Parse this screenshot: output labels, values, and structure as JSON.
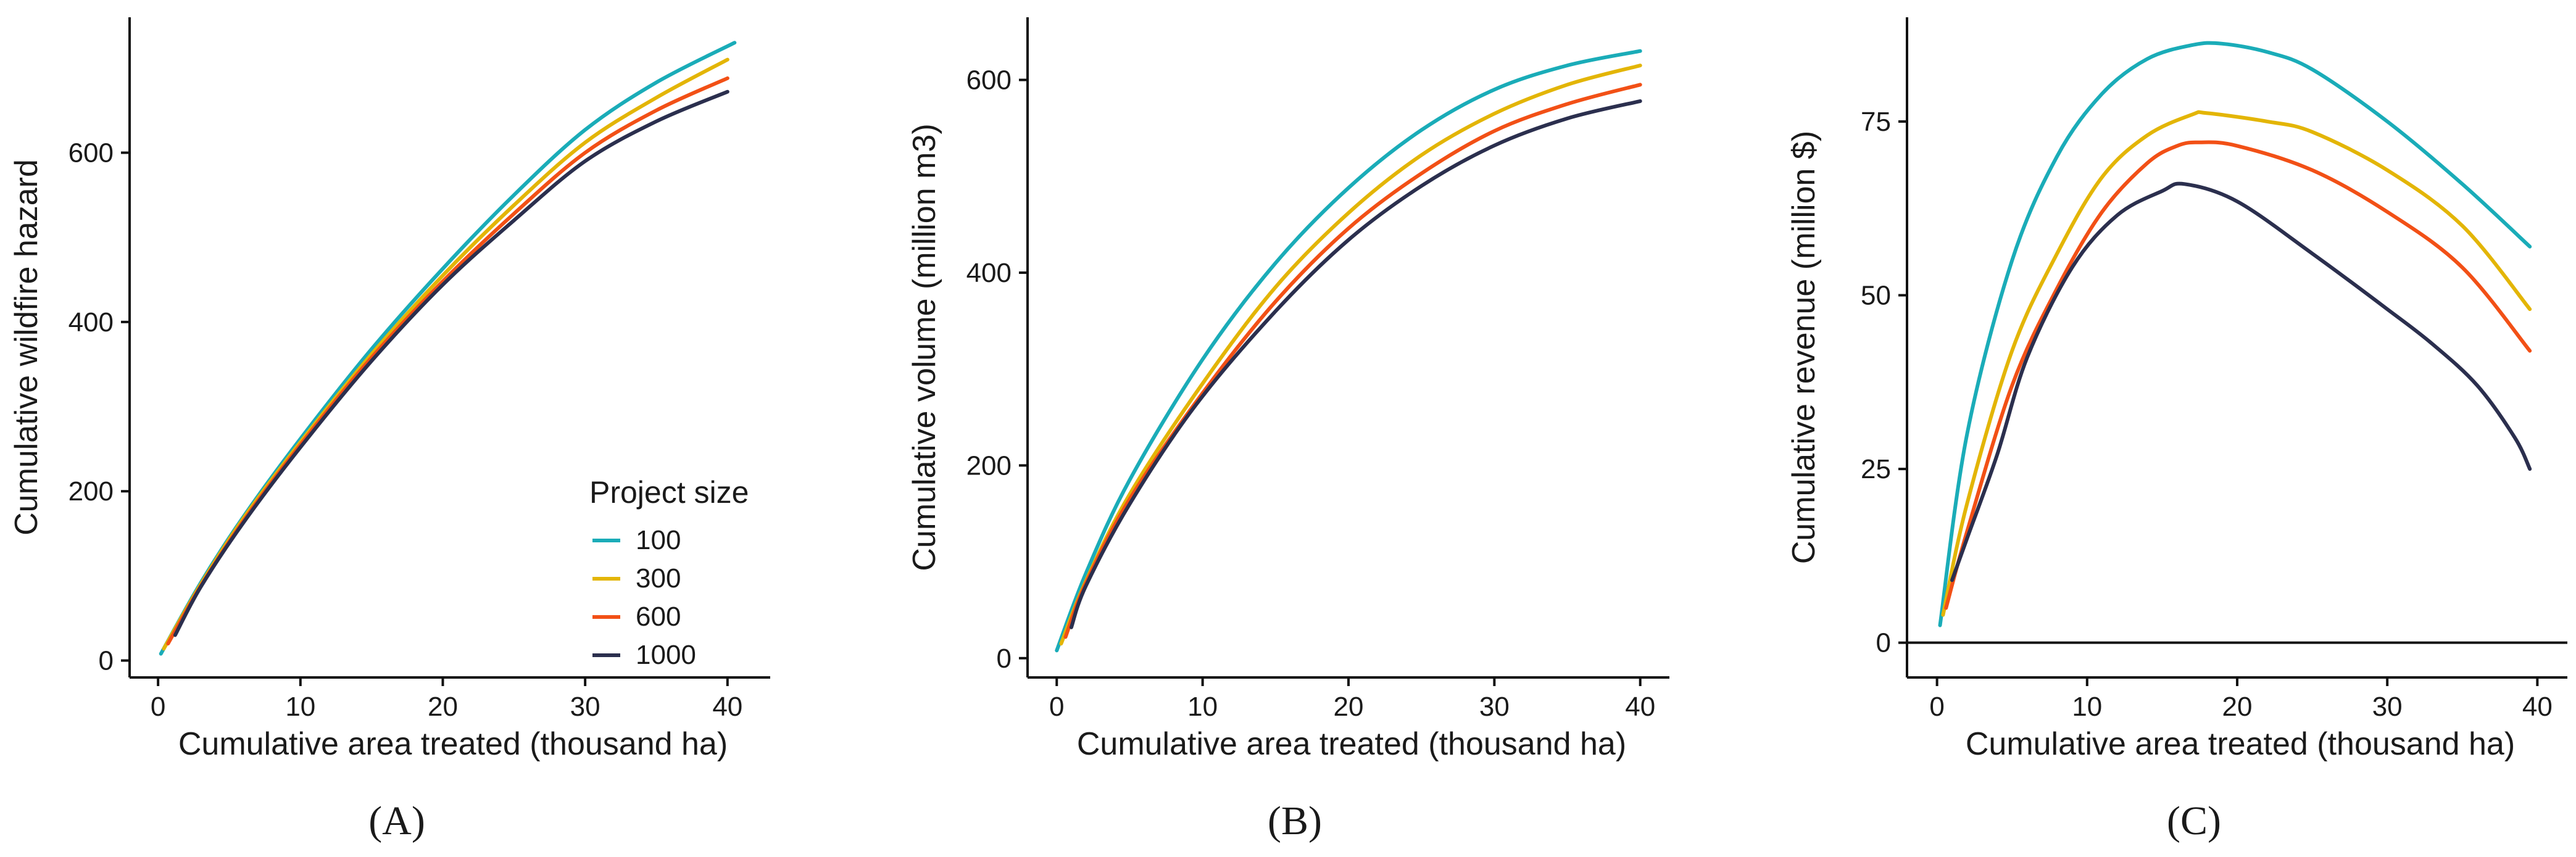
{
  "colors": {
    "100": "#1AACB8",
    "300": "#E3B505",
    "600": "#F25016",
    "1000": "#2B2F4E"
  },
  "legend": {
    "title": "Project size",
    "entries": [
      "100",
      "300",
      "600",
      "1000"
    ]
  },
  "chart_data": [
    {
      "type": "line",
      "panel_label": "(A)",
      "xlabel": "Cumulative area treated (thousand ha)",
      "ylabel": "Cumulative wildfire hazard",
      "xlim": [
        -2,
        43
      ],
      "ylim": [
        -20,
        760
      ],
      "xticks": [
        0,
        10,
        20,
        30,
        40
      ],
      "yticks": [
        0,
        200,
        400,
        600
      ],
      "legend_position": "bottom-right",
      "series": [
        {
          "name": "100",
          "x": [
            0.2,
            3,
            6,
            10,
            15,
            20,
            25,
            30,
            35,
            40.5
          ],
          "y": [
            8,
            92,
            170,
            262,
            368,
            463,
            550,
            627,
            683,
            730
          ]
        },
        {
          "name": "300",
          "x": [
            0.4,
            3,
            6,
            10,
            15,
            20,
            25,
            30,
            35,
            40
          ],
          "y": [
            14,
            90,
            168,
            258,
            362,
            455,
            538,
            612,
            665,
            710
          ]
        },
        {
          "name": "600",
          "x": [
            0.7,
            3,
            6,
            10,
            15,
            20,
            25,
            30,
            35,
            40
          ],
          "y": [
            20,
            88,
            165,
            255,
            358,
            448,
            528,
            600,
            650,
            688
          ]
        },
        {
          "name": "1000",
          "x": [
            1.2,
            3,
            6,
            10,
            15,
            20,
            25,
            30,
            35,
            40
          ],
          "y": [
            30,
            87,
            163,
            252,
            354,
            444,
            520,
            590,
            637,
            672
          ]
        }
      ]
    },
    {
      "type": "line",
      "panel_label": "(B)",
      "xlabel": "Cumulative area treated (thousand ha)",
      "ylabel": "Cumulative volume (million m3)",
      "xlim": [
        -2,
        42
      ],
      "ylim": [
        -20,
        665
      ],
      "xticks": [
        0,
        10,
        20,
        30,
        40
      ],
      "yticks": [
        0,
        200,
        400,
        600
      ],
      "legend_position": "none",
      "series": [
        {
          "name": "100",
          "x": [
            0,
            2,
            5,
            10,
            15,
            20,
            25,
            30,
            35,
            40
          ],
          "y": [
            8,
            88,
            185,
            310,
            410,
            488,
            548,
            590,
            615,
            630
          ]
        },
        {
          "name": "300",
          "x": [
            0.3,
            2,
            5,
            10,
            15,
            20,
            25,
            30,
            35,
            40
          ],
          "y": [
            15,
            80,
            170,
            285,
            385,
            462,
            522,
            565,
            595,
            615
          ]
        },
        {
          "name": "600",
          "x": [
            0.6,
            2,
            5,
            10,
            15,
            20,
            25,
            30,
            35,
            40
          ],
          "y": [
            22,
            78,
            165,
            275,
            370,
            446,
            503,
            547,
            575,
            595
          ]
        },
        {
          "name": "1000",
          "x": [
            1,
            2,
            5,
            9.5,
            15,
            20,
            25,
            30,
            35,
            40
          ],
          "y": [
            32,
            75,
            160,
            262,
            360,
            434,
            490,
            532,
            560,
            578
          ]
        }
      ]
    },
    {
      "type": "line",
      "panel_label": "(C)",
      "xlabel": "Cumulative area treated (thousand ha)",
      "ylabel": "Cumulative revenue (million $)",
      "xlim": [
        -2,
        42
      ],
      "ylim": [
        -5,
        90
      ],
      "xticks": [
        0,
        10,
        20,
        30,
        40
      ],
      "yticks": [
        0,
        25,
        50,
        75
      ],
      "zero_line": 0,
      "legend_position": "none",
      "series": [
        {
          "name": "100",
          "x": [
            0.2,
            2,
            5,
            8,
            11,
            14,
            17,
            19,
            22,
            25,
            30,
            35,
            39.5
          ],
          "y": [
            2.5,
            30,
            55,
            70,
            79,
            84,
            86,
            86.2,
            85,
            82.5,
            75,
            66,
            57
          ]
        },
        {
          "name": "300",
          "x": [
            0.4,
            2,
            5,
            8,
            11,
            14,
            17,
            18,
            22,
            25,
            30,
            35,
            39.5
          ],
          "y": [
            4,
            20,
            42,
            56,
            67,
            73,
            76,
            76.2,
            75,
            73.5,
            68,
            60,
            48
          ]
        },
        {
          "name": "600",
          "x": [
            0.6,
            2,
            5,
            8,
            11,
            14,
            16,
            17.5,
            20,
            25,
            30,
            35,
            39.5
          ],
          "y": [
            5,
            16,
            37,
            51,
            62,
            69,
            71.5,
            72,
            71.5,
            68,
            62,
            54,
            42
          ]
        },
        {
          "name": "1000",
          "x": [
            1,
            2,
            4,
            6,
            9,
            12,
            15,
            16.5,
            20,
            25,
            30,
            33,
            36,
            38.5,
            39.5
          ],
          "y": [
            9,
            15,
            27,
            41,
            54,
            61.5,
            65,
            66,
            63.5,
            56,
            48,
            43,
            37,
            29.5,
            25
          ]
        }
      ]
    }
  ]
}
